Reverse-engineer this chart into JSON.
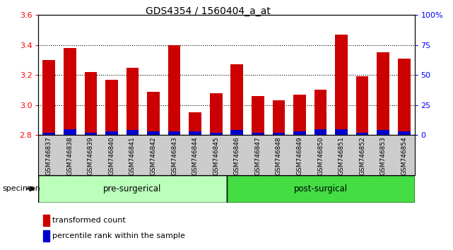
{
  "title": "GDS4354 / 1560404_a_at",
  "samples": [
    "GSM746837",
    "GSM746838",
    "GSM746839",
    "GSM746840",
    "GSM746841",
    "GSM746842",
    "GSM746843",
    "GSM746844",
    "GSM746845",
    "GSM746846",
    "GSM746847",
    "GSM746848",
    "GSM746849",
    "GSM746850",
    "GSM746851",
    "GSM746852",
    "GSM746853",
    "GSM746854"
  ],
  "transformed_counts": [
    3.3,
    3.38,
    3.22,
    3.17,
    3.25,
    3.09,
    3.4,
    2.95,
    3.08,
    3.27,
    3.06,
    3.03,
    3.07,
    3.1,
    3.47,
    3.19,
    3.35,
    3.31
  ],
  "percentile_ranks": [
    2,
    5,
    2,
    3,
    4,
    3,
    3,
    3,
    2,
    4,
    2,
    2,
    3,
    5,
    5,
    2,
    4,
    3
  ],
  "ylim_left": [
    2.8,
    3.6
  ],
  "ylim_right": [
    0,
    100
  ],
  "yticks_left": [
    2.8,
    3.0,
    3.2,
    3.4,
    3.6
  ],
  "yticks_right": [
    0,
    25,
    50,
    75,
    100
  ],
  "bar_color_red": "#cc0000",
  "bar_color_blue": "#0000cc",
  "pre_surgical_count": 9,
  "post_surgical_count": 9,
  "pre_surgical_label": "pre-surgerical",
  "post_surgical_label": "post-surgical",
  "pre_surgical_color": "#bbffbb",
  "post_surgical_color": "#44dd44",
  "xlabel_area_color": "#cccccc",
  "specimen_label": "specimen",
  "legend_red_label": "transformed count",
  "legend_blue_label": "percentile rank within the sample",
  "bar_width": 0.6
}
